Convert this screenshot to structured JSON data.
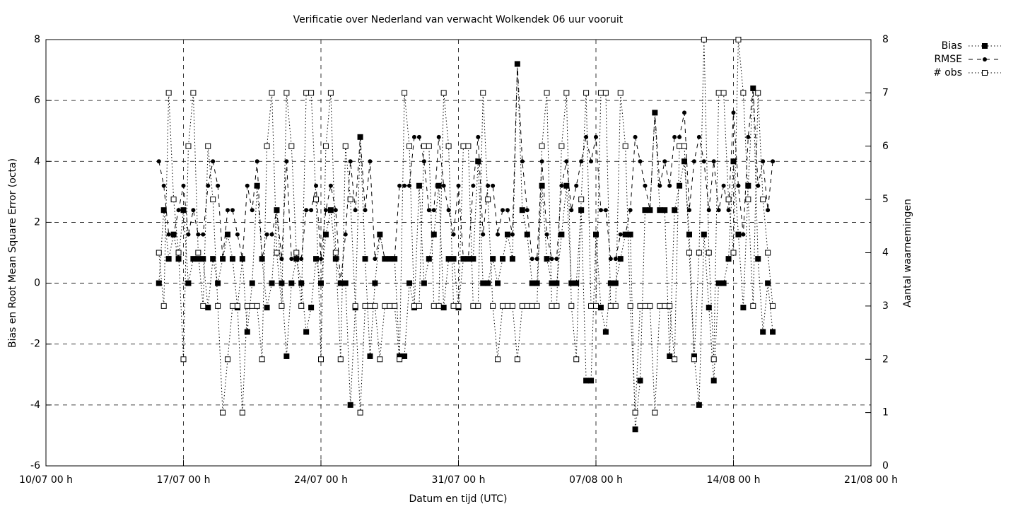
{
  "chart_data": {
    "type": "line",
    "title": "Verificatie over Nederland van verwacht Wolkendek 06 uur vooruit",
    "xlabel": "Datum en tijd (UTC)",
    "ylabel": "Bias en Root Mean Square Error (octa)",
    "y2label": "Aantal waarnemingen",
    "xlim": [
      "10/07 00 h",
      "21/08 00 h"
    ],
    "xticks": [
      "10/07 00 h",
      "17/07 00 h",
      "24/07 00 h",
      "31/07 00 h",
      "07/08 00 h",
      "14/08 00 h",
      "21/08 00 h"
    ],
    "ylim": [
      -6,
      8
    ],
    "yticks": [
      -6,
      -4,
      -2,
      0,
      2,
      4,
      6,
      8
    ],
    "y2lim": [
      0,
      8
    ],
    "y2ticks": [
      0,
      1,
      2,
      3,
      4,
      5,
      6,
      7,
      8
    ],
    "grid": true,
    "legend": "outside-top-right",
    "x": [
      "15/07 18 h",
      "16/07 00 h",
      "16/07 06 h",
      "16/07 12 h",
      "16/07 18 h",
      "17/07 00 h",
      "17/07 06 h",
      "17/07 12 h",
      "17/07 18 h",
      "18/07 00 h",
      "18/07 06 h",
      "18/07 12 h",
      "18/07 18 h",
      "19/07 00 h",
      "19/07 06 h",
      "19/07 12 h",
      "19/07 18 h",
      "20/07 00 h",
      "20/07 06 h",
      "20/07 12 h",
      "20/07 18 h",
      "21/07 00 h",
      "21/07 06 h",
      "21/07 12 h",
      "21/07 18 h",
      "22/07 00 h",
      "22/07 06 h",
      "22/07 12 h",
      "22/07 18 h",
      "23/07 00 h",
      "23/07 06 h",
      "23/07 12 h",
      "23/07 18 h",
      "24/07 00 h",
      "24/07 06 h",
      "24/07 12 h",
      "24/07 18 h",
      "25/07 00 h",
      "25/07 06 h",
      "25/07 12 h",
      "25/07 18 h",
      "26/07 00 h",
      "26/07 06 h",
      "26/07 12 h",
      "26/07 18 h",
      "27/07 00 h",
      "27/07 06 h",
      "27/07 12 h",
      "27/07 18 h",
      "28/07 00 h",
      "28/07 06 h",
      "28/07 12 h",
      "28/07 18 h",
      "29/07 00 h",
      "29/07 06 h",
      "29/07 12 h",
      "29/07 18 h",
      "30/07 00 h",
      "30/07 06 h",
      "30/07 12 h",
      "30/07 18 h",
      "31/07 00 h",
      "31/07 06 h",
      "31/07 12 h",
      "31/07 18 h",
      "01/08 00 h",
      "01/08 06 h",
      "01/08 12 h",
      "01/08 18 h",
      "02/08 00 h",
      "02/08 06 h",
      "02/08 12 h",
      "02/08 18 h",
      "03/08 00 h",
      "03/08 06 h",
      "03/08 12 h",
      "03/08 18 h",
      "04/08 00 h",
      "04/08 06 h",
      "04/08 12 h",
      "04/08 18 h",
      "05/08 00 h",
      "05/08 06 h",
      "05/08 12 h",
      "05/08 18 h",
      "06/08 00 h",
      "06/08 06 h",
      "06/08 12 h",
      "06/08 18 h",
      "07/08 00 h",
      "07/08 06 h",
      "07/08 12 h",
      "07/08 18 h",
      "08/08 00 h",
      "08/08 06 h",
      "08/08 12 h",
      "08/08 18 h",
      "09/08 00 h",
      "09/08 06 h",
      "09/08 12 h",
      "09/08 18 h",
      "10/08 00 h",
      "10/08 06 h",
      "10/08 12 h",
      "10/08 18 h",
      "11/08 00 h",
      "11/08 06 h",
      "11/08 12 h",
      "11/08 18 h",
      "12/08 00 h",
      "12/08 06 h",
      "12/08 12 h",
      "12/08 18 h",
      "13/08 00 h",
      "13/08 06 h",
      "13/08 12 h",
      "13/08 18 h",
      "14/08 00 h",
      "14/08 06 h",
      "14/08 12 h",
      "14/08 18 h",
      "15/08 00 h",
      "15/08 06 h",
      "15/08 12 h",
      "15/08 18 h",
      "16/08 00 h"
    ],
    "series": [
      {
        "name": "Bias",
        "color": "#000000",
        "marker": "filled-square",
        "dash": "dotted",
        "values": [
          0,
          2.4,
          0.8,
          1.6,
          0.8,
          2.4,
          0,
          0.8,
          0.8,
          0.8,
          -0.8,
          0.8,
          0,
          0.8,
          1.6,
          0.8,
          -0.8,
          0.8,
          -1.6,
          0,
          3.2,
          0.8,
          -0.8,
          0,
          2.4,
          0,
          -2.4,
          0,
          0.8,
          0,
          -1.6,
          -0.8,
          0.8,
          0,
          1.6,
          2.4,
          0.8,
          0,
          0,
          -4,
          -0.8,
          4.8,
          0.8,
          -2.4,
          0,
          1.6,
          0.8,
          0.8,
          0.8,
          -2.4,
          -2.4,
          0,
          -0.8,
          3.2,
          0,
          0.8,
          1.6,
          3.2,
          -0.8,
          0.8,
          0.8,
          -0.8,
          0.8,
          0.8,
          0.8,
          4,
          0,
          0,
          0.8,
          0,
          0.8,
          1.6,
          0.8,
          7.2,
          2.4,
          1.6,
          0,
          0,
          3.2,
          0.8,
          0,
          0,
          1.6,
          3.2,
          0,
          0,
          2.4,
          -3.2,
          -3.2,
          1.6,
          -0.8,
          -1.6,
          0,
          0,
          0.8,
          1.6,
          1.6,
          -4.8,
          -3.2,
          2.4,
          2.4,
          5.6,
          2.4,
          2.4,
          -2.4,
          2.4,
          3.2,
          4,
          1.6,
          -2.4,
          -4,
          1.6,
          -0.8,
          -3.2,
          0,
          0,
          0.8,
          4,
          1.6,
          -0.8,
          3.2,
          6.4,
          0.8,
          -1.6,
          0,
          -1.6
        ]
      },
      {
        "name": "RMSE",
        "color": "#000000",
        "marker": "circle",
        "dash": "dashed",
        "values": [
          4,
          3.2,
          1.6,
          1.6,
          2.4,
          3.2,
          1.6,
          2.4,
          1.6,
          1.6,
          3.2,
          4,
          3.2,
          0.8,
          2.4,
          2.4,
          1.6,
          0.8,
          3.2,
          2.4,
          4,
          0.8,
          1.6,
          1.6,
          2.4,
          0.8,
          4,
          0.8,
          0.8,
          0.8,
          2.4,
          2.4,
          3.2,
          0.8,
          2.4,
          3.2,
          2.4,
          0,
          1.6,
          4,
          2.4,
          4.8,
          2.4,
          4,
          0.8,
          1.6,
          0.8,
          0.8,
          0.8,
          3.2,
          3.2,
          3.2,
          4.8,
          4.8,
          4,
          2.4,
          2.4,
          4.8,
          3.2,
          2.4,
          1.6,
          3.2,
          0.8,
          0.8,
          3.2,
          4.8,
          1.6,
          3.2,
          3.2,
          1.6,
          2.4,
          2.4,
          1.6,
          7.2,
          4,
          2.4,
          0.8,
          0.8,
          4,
          1.6,
          0.8,
          0.8,
          3.2,
          4,
          2.4,
          3.2,
          4,
          4.8,
          4,
          4.8,
          2.4,
          2.4,
          0.8,
          0.8,
          1.6,
          1.6,
          2.4,
          4.8,
          4,
          3.2,
          2.4,
          5.6,
          3.2,
          4,
          3.2,
          4.8,
          4.8,
          5.6,
          2.4,
          4,
          4.8,
          4,
          2.4,
          4,
          2.4,
          3.2,
          2.4,
          5.6,
          3.2,
          1.6,
          4.8,
          6.4,
          3.2,
          4,
          2.4,
          4
        ]
      },
      {
        "name": "# obs",
        "color": "#000000",
        "marker": "open-square",
        "dash": "dotted",
        "axis": "y2",
        "values": [
          4,
          3,
          7,
          5,
          4,
          2,
          6,
          7,
          4,
          3,
          6,
          5,
          3,
          1,
          2,
          3,
          3,
          1,
          3,
          3,
          3,
          2,
          6,
          7,
          4,
          3,
          7,
          6,
          4,
          3,
          7,
          7,
          5,
          2,
          6,
          7,
          4,
          2,
          6,
          5,
          3,
          1,
          3,
          3,
          3,
          2,
          3,
          3,
          3,
          2,
          7,
          6,
          3,
          3,
          6,
          6,
          3,
          3,
          7,
          6,
          3,
          3,
          6,
          6,
          3,
          3,
          7,
          5,
          3,
          2,
          3,
          3,
          3,
          2,
          3,
          3,
          3,
          3,
          6,
          7,
          3,
          3,
          6,
          7,
          3,
          2,
          5,
          7,
          3,
          3,
          7,
          7,
          3,
          3,
          7,
          6,
          3,
          1,
          3,
          3,
          3,
          1,
          3,
          3,
          3,
          2,
          6,
          6,
          4,
          2,
          4,
          8,
          4,
          2,
          7,
          7,
          5,
          4,
          8,
          7,
          5,
          3,
          7,
          5,
          4,
          3
        ]
      }
    ]
  }
}
